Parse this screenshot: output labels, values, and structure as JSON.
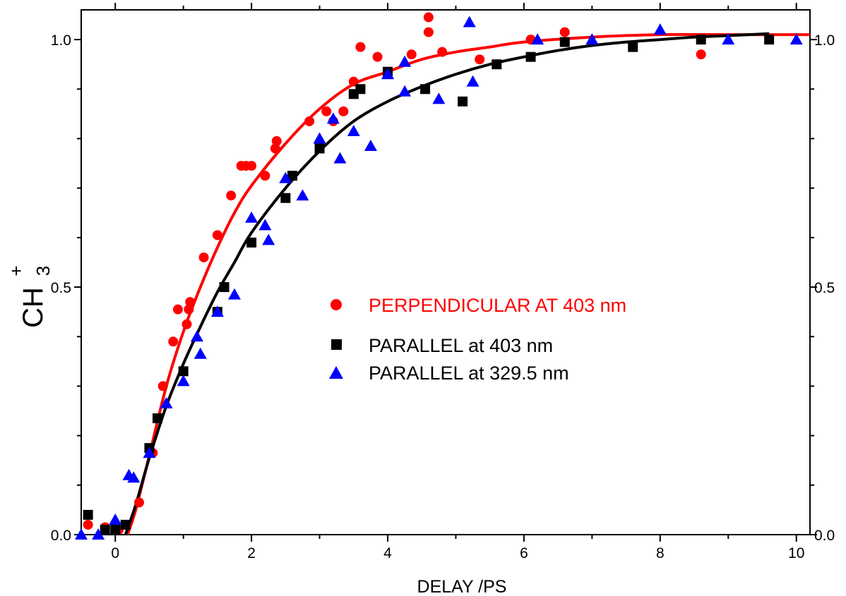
{
  "chart_data": {
    "type": "scatter",
    "xlabel": "DELAY /PS",
    "ylabel_main": "CH",
    "ylabel_sub": "3",
    "ylabel_sup": "+",
    "xlim": [
      -0.5,
      10.2
    ],
    "ylim": [
      0.0,
      1.06
    ],
    "x_ticks": [
      0,
      2,
      4,
      6,
      8,
      10
    ],
    "x_tick_labels": [
      "0",
      "2",
      "4",
      "6",
      "8",
      "10"
    ],
    "y_ticks": [
      0.0,
      0.5,
      1.0
    ],
    "y_tick_labels": [
      "0.0",
      "0.5",
      "1.0"
    ],
    "legend_position": "center",
    "grid": false,
    "series": [
      {
        "name": "PERPENDICULAR AT 403 nm",
        "marker": "circle",
        "color": "#ff0000",
        "points": [
          [
            -0.4,
            0.02
          ],
          [
            -0.15,
            0.015
          ],
          [
            0.05,
            0.01
          ],
          [
            0.35,
            0.065
          ],
          [
            0.55,
            0.165
          ],
          [
            0.7,
            0.3
          ],
          [
            0.85,
            0.39
          ],
          [
            0.92,
            0.455
          ],
          [
            1.05,
            0.425
          ],
          [
            1.08,
            0.455
          ],
          [
            1.1,
            0.47
          ],
          [
            1.3,
            0.56
          ],
          [
            1.5,
            0.605
          ],
          [
            1.7,
            0.685
          ],
          [
            1.85,
            0.745
          ],
          [
            1.92,
            0.745
          ],
          [
            2.0,
            0.745
          ],
          [
            2.2,
            0.725
          ],
          [
            2.35,
            0.78
          ],
          [
            2.37,
            0.795
          ],
          [
            2.85,
            0.835
          ],
          [
            3.1,
            0.855
          ],
          [
            3.2,
            0.835
          ],
          [
            3.35,
            0.855
          ],
          [
            3.5,
            0.915
          ],
          [
            3.6,
            0.985
          ],
          [
            3.85,
            0.965
          ],
          [
            4.35,
            0.97
          ],
          [
            4.6,
            1.045
          ],
          [
            4.6,
            1.015
          ],
          [
            4.8,
            0.975
          ],
          [
            5.35,
            0.96
          ],
          [
            6.1,
            1.0
          ],
          [
            6.6,
            1.015
          ],
          [
            7.6,
            0.985
          ],
          [
            8.6,
            0.97
          ]
        ]
      },
      {
        "name": "PARALLEL at 403 nm",
        "marker": "square",
        "color": "#000000",
        "points": [
          [
            -0.4,
            0.04
          ],
          [
            -0.15,
            0.01
          ],
          [
            0.0,
            0.01
          ],
          [
            0.15,
            0.02
          ],
          [
            0.5,
            0.175
          ],
          [
            0.62,
            0.235
          ],
          [
            1.0,
            0.33
          ],
          [
            1.5,
            0.45
          ],
          [
            1.6,
            0.5
          ],
          [
            2.0,
            0.59
          ],
          [
            2.5,
            0.68
          ],
          [
            2.6,
            0.725
          ],
          [
            3.0,
            0.78
          ],
          [
            3.5,
            0.89
          ],
          [
            3.6,
            0.9
          ],
          [
            4.0,
            0.935
          ],
          [
            4.55,
            0.9
          ],
          [
            5.1,
            0.875
          ],
          [
            5.6,
            0.95
          ],
          [
            6.1,
            0.965
          ],
          [
            6.6,
            0.995
          ],
          [
            7.6,
            0.985
          ],
          [
            8.6,
            1.0
          ],
          [
            9.6,
            1.0
          ]
        ]
      },
      {
        "name": "PARALLEL at 329.5 nm",
        "marker": "triangle",
        "color": "#0000ff",
        "points": [
          [
            -0.5,
            0.0
          ],
          [
            -0.25,
            0.0
          ],
          [
            0.0,
            0.03
          ],
          [
            0.2,
            0.12
          ],
          [
            0.27,
            0.115
          ],
          [
            0.5,
            0.165
          ],
          [
            0.75,
            0.265
          ],
          [
            1.0,
            0.31
          ],
          [
            1.2,
            0.4
          ],
          [
            1.25,
            0.365
          ],
          [
            1.5,
            0.45
          ],
          [
            1.75,
            0.485
          ],
          [
            2.0,
            0.64
          ],
          [
            2.2,
            0.625
          ],
          [
            2.25,
            0.595
          ],
          [
            2.5,
            0.72
          ],
          [
            2.75,
            0.685
          ],
          [
            3.0,
            0.8
          ],
          [
            3.2,
            0.84
          ],
          [
            3.3,
            0.76
          ],
          [
            3.5,
            0.815
          ],
          [
            3.75,
            0.785
          ],
          [
            4.0,
            0.93
          ],
          [
            4.25,
            0.955
          ],
          [
            4.25,
            0.895
          ],
          [
            4.75,
            0.88
          ],
          [
            5.2,
            1.035
          ],
          [
            5.25,
            0.915
          ],
          [
            6.2,
            1.0
          ],
          [
            7.0,
            1.0
          ],
          [
            8.0,
            1.02
          ],
          [
            9.0,
            1.0
          ],
          [
            10.0,
            1.0
          ]
        ]
      }
    ],
    "fit_curves": [
      {
        "color": "#ff0000",
        "points": [
          [
            0.18,
            0.0
          ],
          [
            0.3,
            0.05
          ],
          [
            0.5,
            0.16
          ],
          [
            0.75,
            0.3
          ],
          [
            1.0,
            0.41
          ],
          [
            1.25,
            0.5
          ],
          [
            1.5,
            0.58
          ],
          [
            1.75,
            0.65
          ],
          [
            2.0,
            0.705
          ],
          [
            2.5,
            0.79
          ],
          [
            3.0,
            0.86
          ],
          [
            3.5,
            0.91
          ],
          [
            4.0,
            0.935
          ],
          [
            4.5,
            0.96
          ],
          [
            5.0,
            0.975
          ],
          [
            5.5,
            0.985
          ],
          [
            6.0,
            0.995
          ],
          [
            7.0,
            1.005
          ],
          [
            8.0,
            1.01
          ],
          [
            9.0,
            1.01
          ],
          [
            10.2,
            1.01
          ]
        ]
      },
      {
        "color": "#000000",
        "points": [
          [
            0.15,
            0.0
          ],
          [
            0.3,
            0.06
          ],
          [
            0.5,
            0.155
          ],
          [
            0.75,
            0.26
          ],
          [
            1.0,
            0.345
          ],
          [
            1.25,
            0.42
          ],
          [
            1.5,
            0.49
          ],
          [
            1.75,
            0.55
          ],
          [
            2.0,
            0.61
          ],
          [
            2.5,
            0.7
          ],
          [
            3.0,
            0.775
          ],
          [
            3.5,
            0.835
          ],
          [
            4.0,
            0.875
          ],
          [
            4.5,
            0.905
          ],
          [
            5.0,
            0.93
          ],
          [
            5.5,
            0.95
          ],
          [
            6.0,
            0.965
          ],
          [
            6.5,
            0.978
          ],
          [
            7.0,
            0.988
          ],
          [
            7.5,
            0.995
          ],
          [
            8.0,
            1.0
          ],
          [
            8.5,
            1.005
          ],
          [
            9.0,
            1.008
          ],
          [
            9.6,
            1.012
          ]
        ]
      }
    ]
  }
}
